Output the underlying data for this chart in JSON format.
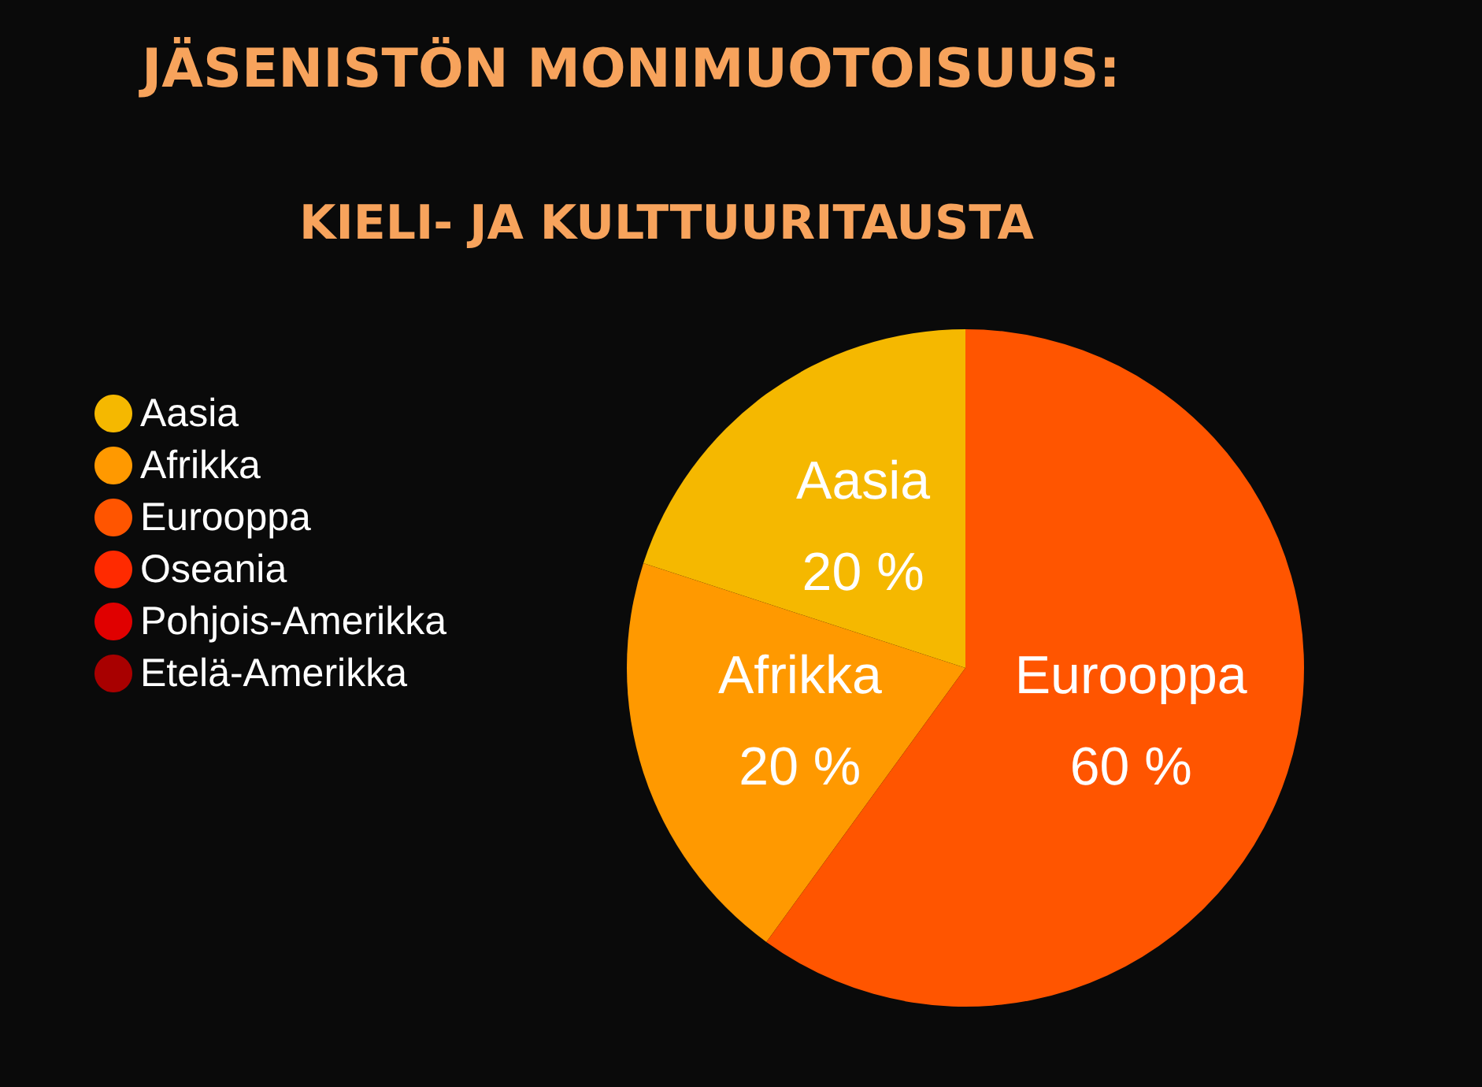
{
  "chart_data": {
    "type": "pie",
    "title": "JÄSENISTÖN MONIMUOTOISUUS:",
    "subtitle": "KIELI- JA KULTTUURITAUSTA",
    "categories": [
      "Aasia",
      "Afrikka",
      "Eurooppa",
      "Oseania",
      "Pohjois-Amerikka",
      "Etelä-Amerikka"
    ],
    "values": [
      20,
      20,
      60,
      0,
      0,
      0
    ],
    "colors": [
      "#f5b800",
      "#ff9900",
      "#ff5500",
      "#ff2a00",
      "#e00000",
      "#a80000"
    ],
    "value_labels": [
      "20 %",
      "20 %",
      "60 %",
      null,
      null,
      null
    ],
    "legend": "left"
  }
}
